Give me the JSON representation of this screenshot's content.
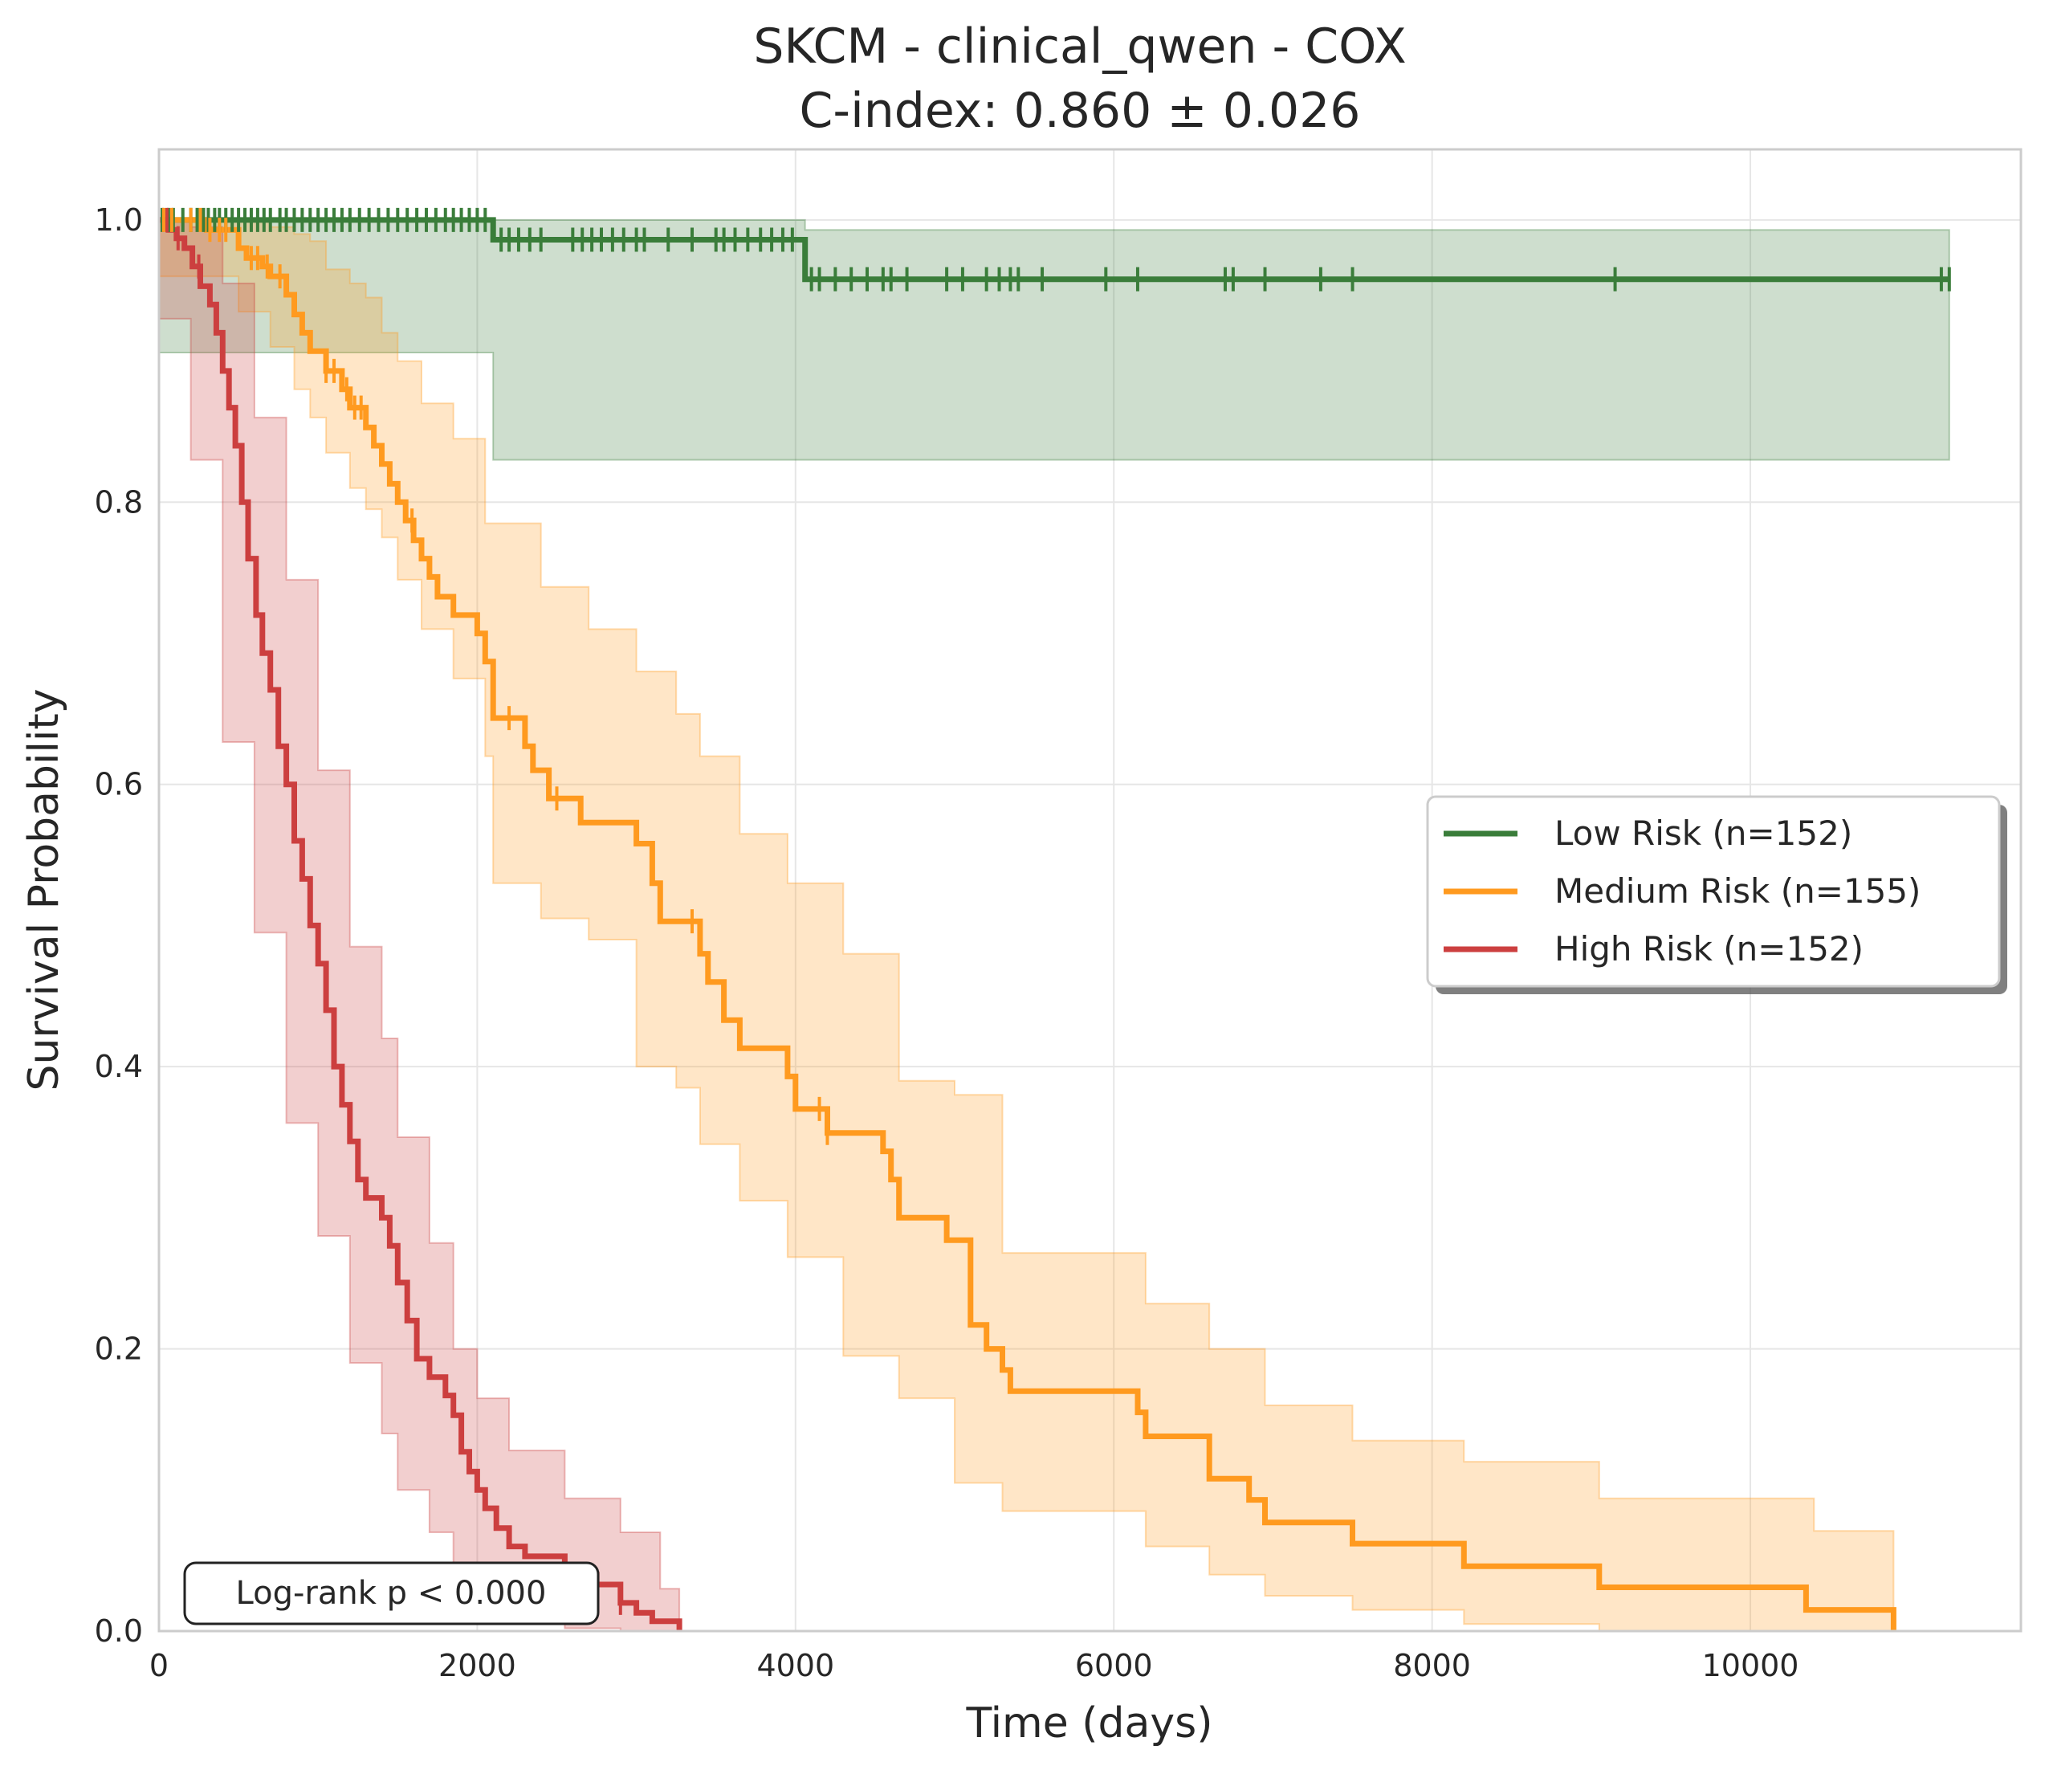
{
  "chart_data": {
    "type": "line",
    "subtype": "kaplan-meier",
    "title": "SKCM - clinical_qwen - COX",
    "subtitle": "C-index: 0.860 ± 0.026",
    "xlabel": "Time (days)",
    "ylabel": "Survival Probability",
    "xlim": [
      0,
      11700
    ],
    "ylim": [
      0,
      1.05
    ],
    "xticks": [
      0,
      2000,
      4000,
      6000,
      8000,
      10000
    ],
    "xtick_labels": [
      "0",
      "2000",
      "4000",
      "6000",
      "8000",
      "10000"
    ],
    "yticks": [
      0.0,
      0.2,
      0.4,
      0.6,
      0.8,
      1.0
    ],
    "ytick_labels": [
      "0.0",
      "0.2",
      "0.4",
      "0.6",
      "0.8",
      "1.0"
    ],
    "grid": true,
    "legend_position": "center-right",
    "annotation": "Log-rank p < 0.000",
    "series": [
      {
        "name": "Low Risk (n=152)",
        "color": "#3a7d3a",
        "steps": [
          [
            0,
            1.0
          ],
          [
            2100,
            0.986
          ],
          [
            4060,
            0.958
          ],
          [
            11250,
            0.958
          ]
        ],
        "ci_upper": [
          [
            0,
            1.0
          ],
          [
            2100,
            1.0
          ],
          [
            4060,
            0.993
          ],
          [
            11250,
            0.993
          ]
        ],
        "ci_lower": [
          [
            0,
            1.0
          ],
          [
            2100,
            0.906
          ],
          [
            4060,
            0.83
          ],
          [
            11250,
            0.83
          ]
        ],
        "censor_times": [
          20,
          60,
          90,
          150,
          200,
          240,
          280,
          310,
          350,
          380,
          420,
          460,
          500,
          540,
          580,
          620,
          660,
          700,
          760,
          800,
          850,
          900,
          950,
          1000,
          1050,
          1100,
          1150,
          1200,
          1260,
          1320,
          1380,
          1440,
          1500,
          1560,
          1620,
          1680,
          1740,
          1800,
          1850,
          1900,
          1950,
          2000,
          2050,
          2150,
          2200,
          2260,
          2330,
          2400,
          2600,
          2660,
          2720,
          2780,
          2850,
          2920,
          3000,
          3050,
          3200,
          3350,
          3500,
          3550,
          3620,
          3700,
          3780,
          3850,
          3920,
          3980,
          4100,
          4150,
          4250,
          4350,
          4450,
          4550,
          4600,
          4700,
          4950,
          5050,
          5200,
          5280,
          5350,
          5400,
          5550,
          5950,
          6150,
          6700,
          6750,
          6950,
          7300,
          7500,
          9150,
          11200,
          11250
        ]
      },
      {
        "name": "Medium Risk (n=155)",
        "color": "#ff9a1f",
        "steps": [
          [
            0,
            1.0
          ],
          [
            300,
            0.993
          ],
          [
            500,
            0.98
          ],
          [
            550,
            0.973
          ],
          [
            650,
            0.967
          ],
          [
            700,
            0.96
          ],
          [
            800,
            0.947
          ],
          [
            850,
            0.933
          ],
          [
            900,
            0.92
          ],
          [
            950,
            0.907
          ],
          [
            1050,
            0.893
          ],
          [
            1150,
            0.88
          ],
          [
            1200,
            0.867
          ],
          [
            1300,
            0.853
          ],
          [
            1350,
            0.84
          ],
          [
            1400,
            0.827
          ],
          [
            1450,
            0.813
          ],
          [
            1500,
            0.8
          ],
          [
            1550,
            0.787
          ],
          [
            1600,
            0.773
          ],
          [
            1650,
            0.76
          ],
          [
            1700,
            0.747
          ],
          [
            1750,
            0.733
          ],
          [
            1850,
            0.72
          ],
          [
            2000,
            0.707
          ],
          [
            2050,
            0.687
          ],
          [
            2100,
            0.647
          ],
          [
            2300,
            0.627
          ],
          [
            2350,
            0.61
          ],
          [
            2450,
            0.59
          ],
          [
            2650,
            0.573
          ],
          [
            3000,
            0.558
          ],
          [
            3100,
            0.53
          ],
          [
            3150,
            0.503
          ],
          [
            3400,
            0.48
          ],
          [
            3450,
            0.46
          ],
          [
            3550,
            0.433
          ],
          [
            3650,
            0.413
          ],
          [
            3950,
            0.393
          ],
          [
            4000,
            0.37
          ],
          [
            4200,
            0.353
          ],
          [
            4550,
            0.34
          ],
          [
            4600,
            0.32
          ],
          [
            4650,
            0.293
          ],
          [
            4950,
            0.277
          ],
          [
            5100,
            0.217
          ],
          [
            5200,
            0.2
          ],
          [
            5300,
            0.185
          ],
          [
            5350,
            0.17
          ],
          [
            6150,
            0.155
          ],
          [
            6200,
            0.138
          ],
          [
            6600,
            0.108
          ],
          [
            6850,
            0.093
          ],
          [
            6950,
            0.077
          ],
          [
            7500,
            0.062
          ],
          [
            8200,
            0.046
          ],
          [
            9050,
            0.031
          ],
          [
            10350,
            0.015
          ],
          [
            10900,
            0.0
          ]
        ],
        "ci_upper": [
          [
            0,
            1.0
          ],
          [
            500,
            1.0
          ],
          [
            700,
            0.995
          ],
          [
            850,
            0.99
          ],
          [
            950,
            0.985
          ],
          [
            1050,
            0.965
          ],
          [
            1200,
            0.955
          ],
          [
            1300,
            0.945
          ],
          [
            1400,
            0.92
          ],
          [
            1500,
            0.9
          ],
          [
            1650,
            0.87
          ],
          [
            1850,
            0.845
          ],
          [
            2050,
            0.785
          ],
          [
            2400,
            0.74
          ],
          [
            2700,
            0.71
          ],
          [
            3000,
            0.68
          ],
          [
            3250,
            0.65
          ],
          [
            3400,
            0.62
          ],
          [
            3650,
            0.565
          ],
          [
            3950,
            0.53
          ],
          [
            4300,
            0.48
          ],
          [
            4650,
            0.39
          ],
          [
            5000,
            0.38
          ],
          [
            5300,
            0.268
          ],
          [
            6200,
            0.232
          ],
          [
            6600,
            0.2
          ],
          [
            6950,
            0.16
          ],
          [
            7500,
            0.135
          ],
          [
            8200,
            0.12
          ],
          [
            9050,
            0.094
          ],
          [
            10400,
            0.071
          ],
          [
            10900,
            0.071
          ]
        ],
        "ci_lower": [
          [
            0,
            1.0
          ],
          [
            500,
            0.96
          ],
          [
            700,
            0.935
          ],
          [
            850,
            0.91
          ],
          [
            950,
            0.88
          ],
          [
            1050,
            0.86
          ],
          [
            1200,
            0.835
          ],
          [
            1300,
            0.81
          ],
          [
            1400,
            0.795
          ],
          [
            1500,
            0.775
          ],
          [
            1650,
            0.745
          ],
          [
            1850,
            0.71
          ],
          [
            2050,
            0.675
          ],
          [
            2100,
            0.62
          ],
          [
            2400,
            0.53
          ],
          [
            2700,
            0.505
          ],
          [
            3000,
            0.49
          ],
          [
            3250,
            0.4
          ],
          [
            3400,
            0.385
          ],
          [
            3650,
            0.345
          ],
          [
            3950,
            0.305
          ],
          [
            4300,
            0.265
          ],
          [
            4650,
            0.195
          ],
          [
            5000,
            0.165
          ],
          [
            5300,
            0.105
          ],
          [
            6200,
            0.085
          ],
          [
            6600,
            0.06
          ],
          [
            6950,
            0.04
          ],
          [
            7500,
            0.025
          ],
          [
            8200,
            0.015
          ],
          [
            9050,
            0.005
          ],
          [
            10400,
            0.0
          ],
          [
            10900,
            0.0
          ]
        ],
        "censor_times": [
          30,
          80,
          200,
          260,
          320,
          380,
          420,
          580,
          620,
          680,
          760,
          1050,
          1100,
          1180,
          1230,
          1270,
          1590,
          2200,
          2500,
          3350,
          4150,
          4200
        ]
      },
      {
        "name": "High Risk (n=152)",
        "color": "#cc3f3f",
        "steps": [
          [
            0,
            1.0
          ],
          [
            60,
            0.993
          ],
          [
            110,
            0.987
          ],
          [
            160,
            0.98
          ],
          [
            210,
            0.967
          ],
          [
            260,
            0.953
          ],
          [
            320,
            0.94
          ],
          [
            360,
            0.92
          ],
          [
            400,
            0.893
          ],
          [
            440,
            0.867
          ],
          [
            480,
            0.84
          ],
          [
            520,
            0.8
          ],
          [
            560,
            0.76
          ],
          [
            610,
            0.72
          ],
          [
            650,
            0.693
          ],
          [
            700,
            0.667
          ],
          [
            750,
            0.627
          ],
          [
            800,
            0.6
          ],
          [
            850,
            0.56
          ],
          [
            900,
            0.533
          ],
          [
            950,
            0.5
          ],
          [
            1000,
            0.473
          ],
          [
            1050,
            0.44
          ],
          [
            1100,
            0.4
          ],
          [
            1150,
            0.373
          ],
          [
            1200,
            0.347
          ],
          [
            1250,
            0.32
          ],
          [
            1300,
            0.307
          ],
          [
            1400,
            0.293
          ],
          [
            1450,
            0.273
          ],
          [
            1500,
            0.247
          ],
          [
            1560,
            0.22
          ],
          [
            1620,
            0.193
          ],
          [
            1700,
            0.18
          ],
          [
            1800,
            0.167
          ],
          [
            1850,
            0.153
          ],
          [
            1900,
            0.127
          ],
          [
            1950,
            0.113
          ],
          [
            2000,
            0.1
          ],
          [
            2050,
            0.087
          ],
          [
            2120,
            0.073
          ],
          [
            2200,
            0.06
          ],
          [
            2300,
            0.053
          ],
          [
            2550,
            0.04
          ],
          [
            2750,
            0.033
          ],
          [
            2900,
            0.02
          ],
          [
            3000,
            0.013
          ],
          [
            3100,
            0.007
          ],
          [
            3270,
            0.0
          ]
        ],
        "ci_upper": [
          [
            0,
            1.0
          ],
          [
            200,
            0.995
          ],
          [
            400,
            0.955
          ],
          [
            600,
            0.86
          ],
          [
            800,
            0.745
          ],
          [
            1000,
            0.61
          ],
          [
            1200,
            0.485
          ],
          [
            1400,
            0.42
          ],
          [
            1500,
            0.35
          ],
          [
            1700,
            0.275
          ],
          [
            1850,
            0.2
          ],
          [
            2000,
            0.165
          ],
          [
            2200,
            0.128
          ],
          [
            2550,
            0.094
          ],
          [
            2900,
            0.07
          ],
          [
            3150,
            0.03
          ],
          [
            3270,
            0.03
          ]
        ],
        "ci_lower": [
          [
            0,
            1.0
          ],
          [
            200,
            0.93
          ],
          [
            400,
            0.83
          ],
          [
            600,
            0.63
          ],
          [
            800,
            0.495
          ],
          [
            1000,
            0.36
          ],
          [
            1200,
            0.28
          ],
          [
            1400,
            0.19
          ],
          [
            1500,
            0.14
          ],
          [
            1700,
            0.1
          ],
          [
            1850,
            0.07
          ],
          [
            2000,
            0.045
          ],
          [
            2200,
            0.025
          ],
          [
            2550,
            0.01
          ],
          [
            2900,
            0.002
          ],
          [
            3150,
            0.0
          ],
          [
            3270,
            0.0
          ]
        ],
        "censor_times": [
          50,
          120,
          250,
          2750,
          2900
        ]
      }
    ]
  }
}
